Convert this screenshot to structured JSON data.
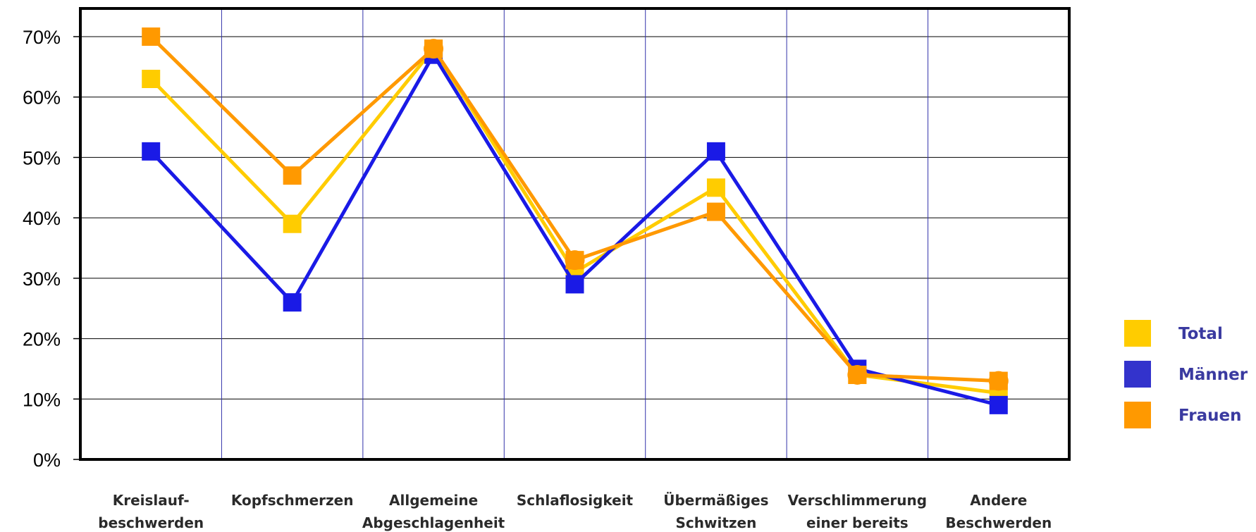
{
  "chart_data": {
    "type": "line",
    "categories": [
      [
        "Kreislauf-",
        "beschwerden"
      ],
      [
        "Kopfschmerzen"
      ],
      [
        "Allgemeine",
        "Abgeschlagenheit"
      ],
      [
        "Schlaflosigkeit"
      ],
      [
        "Übermäßiges",
        "Schwitzen"
      ],
      [
        "Verschlimmerung",
        "einer bereits"
      ],
      [
        "Andere",
        "Beschwerden"
      ]
    ],
    "y_ticks": [
      "0%",
      "10%",
      "20%",
      "30%",
      "40%",
      "50%",
      "60%",
      "70%"
    ],
    "ylim": [
      0,
      70
    ],
    "grid": true,
    "legend_position": "right",
    "series": [
      {
        "name": "Total",
        "color": "#ffcc00",
        "marker": "square",
        "values": [
          63,
          39,
          68,
          31,
          45,
          14,
          11
        ]
      },
      {
        "name": "Männer",
        "color": "#1a1ae6",
        "marker": "square",
        "values": [
          51,
          26,
          67,
          29,
          51,
          15,
          9
        ]
      },
      {
        "name": "Frauen",
        "color": "#ff9900",
        "marker": "square",
        "values": [
          70,
          47,
          68,
          33,
          41,
          14,
          13
        ]
      }
    ],
    "legend_swatch_colors": {
      "Total": "#ffcc00",
      "Männer": "#3333cc",
      "Frauen": "#ff9900"
    },
    "overlay_circles": [
      {
        "series": "Frauen",
        "category_index": 2,
        "value": 68
      },
      {
        "series": "Frauen",
        "category_index": 3,
        "value": 33
      },
      {
        "series": "Frauen",
        "category_index": 5,
        "value": 14
      },
      {
        "series": "Frauen",
        "category_index": 6,
        "value": 13
      }
    ]
  }
}
